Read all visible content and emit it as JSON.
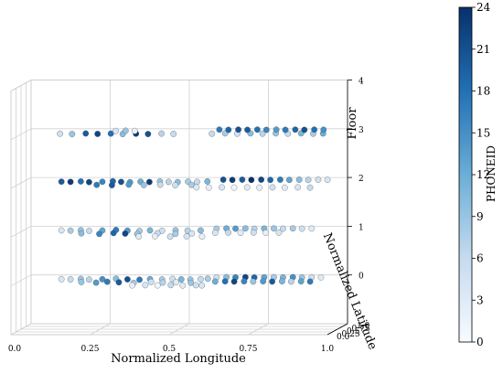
{
  "chart_data": {
    "type": "scatter",
    "projection": "3d",
    "title": "",
    "xlabel": "Normalized Longitude",
    "ylabel": "Normalized Latitude",
    "zlabel": "Floor",
    "xlim": [
      0,
      1
    ],
    "ylim": [
      0,
      1
    ],
    "zlim": [
      -1,
      4
    ],
    "x_ticks": [
      "0.0",
      "0.25",
      "0.5",
      "0.75",
      "1.0"
    ],
    "y_ticks": [
      "0.0",
      "0.25",
      "0.5",
      "0.75",
      "1.0"
    ],
    "z_ticks": [
      "0",
      "1",
      "2",
      "3",
      "4"
    ],
    "grid": true,
    "colorbar": {
      "label": "PHONEID",
      "min": 0,
      "max": 24,
      "ticks": [
        "0",
        "3",
        "6",
        "9",
        "12",
        "15",
        "18",
        "21",
        "24"
      ],
      "colormap": "Blues",
      "low_color": "#f7fbff",
      "high_color": "#08306b"
    },
    "floors": [
      {
        "floor": 0,
        "points": [
          {
            "x": 0.12,
            "y": 0.62,
            "c": 4
          },
          {
            "x": 0.15,
            "y": 0.6,
            "c": 6
          },
          {
            "x": 0.18,
            "y": 0.64,
            "c": 9
          },
          {
            "x": 0.21,
            "y": 0.58,
            "c": 7
          },
          {
            "x": 0.25,
            "y": 0.61,
            "c": 15
          },
          {
            "x": 0.29,
            "y": 0.66,
            "c": 10
          },
          {
            "x": 0.33,
            "y": 0.6,
            "c": 21
          },
          {
            "x": 0.37,
            "y": 0.57,
            "c": 17
          },
          {
            "x": 0.4,
            "y": 0.62,
            "c": 12
          },
          {
            "x": 0.44,
            "y": 0.59,
            "c": 8
          },
          {
            "x": 0.47,
            "y": 0.64,
            "c": 5
          },
          {
            "x": 0.5,
            "y": 0.6,
            "c": 11
          },
          {
            "x": 0.53,
            "y": 0.58,
            "c": 9
          },
          {
            "x": 0.56,
            "y": 0.62,
            "c": 6
          },
          {
            "x": 0.58,
            "y": 0.66,
            "c": 8
          },
          {
            "x": 0.2,
            "y": 0.35,
            "c": 9
          },
          {
            "x": 0.25,
            "y": 0.3,
            "c": 14
          },
          {
            "x": 0.28,
            "y": 0.38,
            "c": 17
          },
          {
            "x": 0.32,
            "y": 0.33,
            "c": 20
          },
          {
            "x": 0.37,
            "y": 0.28,
            "c": 8
          },
          {
            "x": 0.42,
            "y": 0.36,
            "c": 5
          },
          {
            "x": 0.46,
            "y": 0.31,
            "c": 7
          },
          {
            "x": 0.5,
            "y": 0.34,
            "c": 3
          },
          {
            "x": 0.55,
            "y": 0.29,
            "c": 9
          },
          {
            "x": 0.38,
            "y": 0.05,
            "c": 2
          },
          {
            "x": 0.42,
            "y": 0.07,
            "c": 4
          },
          {
            "x": 0.46,
            "y": 0.05,
            "c": 1
          },
          {
            "x": 0.5,
            "y": 0.08,
            "c": 6
          },
          {
            "x": 0.54,
            "y": 0.04,
            "c": 3
          },
          {
            "x": 0.58,
            "y": 0.07,
            "c": 5
          },
          {
            "x": 0.6,
            "y": 0.05,
            "c": 4
          },
          {
            "x": 0.6,
            "y": 0.78,
            "c": 5
          },
          {
            "x": 0.63,
            "y": 0.8,
            "c": 10
          },
          {
            "x": 0.66,
            "y": 0.78,
            "c": 16
          },
          {
            "x": 0.69,
            "y": 0.8,
            "c": 22
          },
          {
            "x": 0.72,
            "y": 0.77,
            "c": 19
          },
          {
            "x": 0.75,
            "y": 0.79,
            "c": 13
          },
          {
            "x": 0.78,
            "y": 0.8,
            "c": 8
          },
          {
            "x": 0.81,
            "y": 0.78,
            "c": 11
          },
          {
            "x": 0.84,
            "y": 0.8,
            "c": 15
          },
          {
            "x": 0.87,
            "y": 0.78,
            "c": 9
          },
          {
            "x": 0.9,
            "y": 0.79,
            "c": 5
          },
          {
            "x": 0.93,
            "y": 0.78,
            "c": 3
          },
          {
            "x": 0.62,
            "y": 0.4,
            "c": 12
          },
          {
            "x": 0.65,
            "y": 0.42,
            "c": 18
          },
          {
            "x": 0.68,
            "y": 0.4,
            "c": 22
          },
          {
            "x": 0.71,
            "y": 0.42,
            "c": 16
          },
          {
            "x": 0.74,
            "y": 0.4,
            "c": 9
          },
          {
            "x": 0.77,
            "y": 0.42,
            "c": 14
          },
          {
            "x": 0.8,
            "y": 0.4,
            "c": 20
          },
          {
            "x": 0.83,
            "y": 0.42,
            "c": 11
          },
          {
            "x": 0.86,
            "y": 0.4,
            "c": 7
          },
          {
            "x": 0.89,
            "y": 0.42,
            "c": 13
          },
          {
            "x": 0.92,
            "y": 0.4,
            "c": 17
          }
        ]
      },
      {
        "floor": 1,
        "points": [
          {
            "x": 0.12,
            "y": 0.62,
            "c": 4
          },
          {
            "x": 0.15,
            "y": 0.6,
            "c": 8
          },
          {
            "x": 0.18,
            "y": 0.64,
            "c": 9
          },
          {
            "x": 0.21,
            "y": 0.58,
            "c": 6
          },
          {
            "x": 0.25,
            "y": 0.61,
            "c": 13
          },
          {
            "x": 0.29,
            "y": 0.66,
            "c": 17
          },
          {
            "x": 0.33,
            "y": 0.6,
            "c": 14
          },
          {
            "x": 0.37,
            "y": 0.57,
            "c": 8
          },
          {
            "x": 0.4,
            "y": 0.62,
            "c": 11
          },
          {
            "x": 0.44,
            "y": 0.59,
            "c": 5
          },
          {
            "x": 0.48,
            "y": 0.63,
            "c": 9
          },
          {
            "x": 0.52,
            "y": 0.6,
            "c": 7
          },
          {
            "x": 0.56,
            "y": 0.62,
            "c": 10
          },
          {
            "x": 0.2,
            "y": 0.35,
            "c": 10
          },
          {
            "x": 0.26,
            "y": 0.3,
            "c": 16
          },
          {
            "x": 0.3,
            "y": 0.38,
            "c": 19
          },
          {
            "x": 0.34,
            "y": 0.33,
            "c": 22
          },
          {
            "x": 0.38,
            "y": 0.3,
            "c": 9
          },
          {
            "x": 0.44,
            "y": 0.36,
            "c": 6
          },
          {
            "x": 0.5,
            "y": 0.31,
            "c": 8
          },
          {
            "x": 0.55,
            "y": 0.34,
            "c": 4
          },
          {
            "x": 0.4,
            "y": 0.06,
            "c": 3
          },
          {
            "x": 0.45,
            "y": 0.08,
            "c": 2
          },
          {
            "x": 0.5,
            "y": 0.05,
            "c": 5
          },
          {
            "x": 0.55,
            "y": 0.08,
            "c": 4
          },
          {
            "x": 0.6,
            "y": 0.06,
            "c": 2
          },
          {
            "x": 0.6,
            "y": 0.78,
            "c": 8
          },
          {
            "x": 0.63,
            "y": 0.8,
            "c": 12
          },
          {
            "x": 0.66,
            "y": 0.78,
            "c": 14
          },
          {
            "x": 0.69,
            "y": 0.8,
            "c": 10
          },
          {
            "x": 0.72,
            "y": 0.77,
            "c": 7
          },
          {
            "x": 0.75,
            "y": 0.79,
            "c": 11
          },
          {
            "x": 0.78,
            "y": 0.8,
            "c": 9
          },
          {
            "x": 0.81,
            "y": 0.78,
            "c": 6
          },
          {
            "x": 0.84,
            "y": 0.8,
            "c": 8
          },
          {
            "x": 0.87,
            "y": 0.78,
            "c": 5
          },
          {
            "x": 0.9,
            "y": 0.79,
            "c": 3
          },
          {
            "x": 0.62,
            "y": 0.4,
            "c": 4
          },
          {
            "x": 0.66,
            "y": 0.42,
            "c": 6
          },
          {
            "x": 0.7,
            "y": 0.4,
            "c": 3
          },
          {
            "x": 0.74,
            "y": 0.42,
            "c": 5
          },
          {
            "x": 0.78,
            "y": 0.4,
            "c": 2
          },
          {
            "x": 0.82,
            "y": 0.42,
            "c": 4
          }
        ]
      },
      {
        "floor": 2,
        "points": [
          {
            "x": 0.12,
            "y": 0.62,
            "c": 20
          },
          {
            "x": 0.15,
            "y": 0.6,
            "c": 23
          },
          {
            "x": 0.18,
            "y": 0.64,
            "c": 18
          },
          {
            "x": 0.21,
            "y": 0.58,
            "c": 22
          },
          {
            "x": 0.25,
            "y": 0.61,
            "c": 16
          },
          {
            "x": 0.28,
            "y": 0.66,
            "c": 19
          },
          {
            "x": 0.31,
            "y": 0.6,
            "c": 21
          },
          {
            "x": 0.34,
            "y": 0.57,
            "c": 14
          },
          {
            "x": 0.37,
            "y": 0.62,
            "c": 12
          },
          {
            "x": 0.4,
            "y": 0.59,
            "c": 23
          },
          {
            "x": 0.43,
            "y": 0.64,
            "c": 9
          },
          {
            "x": 0.46,
            "y": 0.6,
            "c": 7
          },
          {
            "x": 0.49,
            "y": 0.58,
            "c": 10
          },
          {
            "x": 0.52,
            "y": 0.62,
            "c": 8
          },
          {
            "x": 0.55,
            "y": 0.6,
            "c": 6
          },
          {
            "x": 0.58,
            "y": 0.64,
            "c": 11
          },
          {
            "x": 0.25,
            "y": 0.33,
            "c": 17
          },
          {
            "x": 0.3,
            "y": 0.3,
            "c": 20
          },
          {
            "x": 0.35,
            "y": 0.35,
            "c": 14
          },
          {
            "x": 0.4,
            "y": 0.31,
            "c": 9
          },
          {
            "x": 0.45,
            "y": 0.34,
            "c": 6
          },
          {
            "x": 0.5,
            "y": 0.3,
            "c": 5
          },
          {
            "x": 0.55,
            "y": 0.33,
            "c": 8
          },
          {
            "x": 0.58,
            "y": 0.1,
            "c": 3
          },
          {
            "x": 0.62,
            "y": 0.08,
            "c": 2
          },
          {
            "x": 0.66,
            "y": 0.1,
            "c": 4
          },
          {
            "x": 0.7,
            "y": 0.08,
            "c": 1
          },
          {
            "x": 0.74,
            "y": 0.1,
            "c": 3
          },
          {
            "x": 0.78,
            "y": 0.08,
            "c": 2
          },
          {
            "x": 0.82,
            "y": 0.1,
            "c": 5
          },
          {
            "x": 0.86,
            "y": 0.08,
            "c": 3
          },
          {
            "x": 0.9,
            "y": 0.1,
            "c": 4
          },
          {
            "x": 0.94,
            "y": 0.08,
            "c": 6
          },
          {
            "x": 0.62,
            "y": 0.8,
            "c": 21
          },
          {
            "x": 0.65,
            "y": 0.78,
            "c": 23
          },
          {
            "x": 0.68,
            "y": 0.8,
            "c": 20
          },
          {
            "x": 0.71,
            "y": 0.78,
            "c": 24
          },
          {
            "x": 0.74,
            "y": 0.8,
            "c": 22
          },
          {
            "x": 0.77,
            "y": 0.78,
            "c": 19
          },
          {
            "x": 0.8,
            "y": 0.8,
            "c": 17
          },
          {
            "x": 0.83,
            "y": 0.78,
            "c": 13
          },
          {
            "x": 0.86,
            "y": 0.8,
            "c": 10
          },
          {
            "x": 0.89,
            "y": 0.78,
            "c": 7
          },
          {
            "x": 0.92,
            "y": 0.8,
            "c": 5
          },
          {
            "x": 0.95,
            "y": 0.79,
            "c": 4
          }
        ]
      },
      {
        "floor": 3,
        "points": [
          {
            "x": 0.12,
            "y": 0.55,
            "c": 5
          },
          {
            "x": 0.16,
            "y": 0.52,
            "c": 9
          },
          {
            "x": 0.2,
            "y": 0.57,
            "c": 20
          },
          {
            "x": 0.24,
            "y": 0.53,
            "c": 22
          },
          {
            "x": 0.28,
            "y": 0.56,
            "c": 18
          },
          {
            "x": 0.32,
            "y": 0.52,
            "c": 10
          },
          {
            "x": 0.36,
            "y": 0.55,
            "c": 23
          },
          {
            "x": 0.4,
            "y": 0.52,
            "c": 21
          },
          {
            "x": 0.44,
            "y": 0.56,
            "c": 7
          },
          {
            "x": 0.48,
            "y": 0.53,
            "c": 6
          },
          {
            "x": 0.28,
            "y": 0.8,
            "c": 4
          },
          {
            "x": 0.31,
            "y": 0.82,
            "c": 9
          },
          {
            "x": 0.34,
            "y": 0.8,
            "c": 2
          },
          {
            "x": 0.6,
            "y": 0.55,
            "c": 6
          },
          {
            "x": 0.64,
            "y": 0.58,
            "c": 8
          },
          {
            "x": 0.68,
            "y": 0.55,
            "c": 5
          },
          {
            "x": 0.72,
            "y": 0.58,
            "c": 10
          },
          {
            "x": 0.76,
            "y": 0.55,
            "c": 7
          },
          {
            "x": 0.8,
            "y": 0.58,
            "c": 9
          },
          {
            "x": 0.84,
            "y": 0.55,
            "c": 6
          },
          {
            "x": 0.88,
            "y": 0.58,
            "c": 11
          },
          {
            "x": 0.92,
            "y": 0.55,
            "c": 8
          },
          {
            "x": 0.95,
            "y": 0.57,
            "c": 12
          },
          {
            "x": 0.6,
            "y": 0.92,
            "c": 17
          },
          {
            "x": 0.63,
            "y": 0.9,
            "c": 19
          },
          {
            "x": 0.66,
            "y": 0.92,
            "c": 21
          },
          {
            "x": 0.69,
            "y": 0.9,
            "c": 20
          },
          {
            "x": 0.72,
            "y": 0.92,
            "c": 18
          },
          {
            "x": 0.75,
            "y": 0.9,
            "c": 16
          },
          {
            "x": 0.78,
            "y": 0.92,
            "c": 14
          },
          {
            "x": 0.81,
            "y": 0.9,
            "c": 17
          },
          {
            "x": 0.84,
            "y": 0.92,
            "c": 19
          },
          {
            "x": 0.87,
            "y": 0.9,
            "c": 21
          },
          {
            "x": 0.9,
            "y": 0.92,
            "c": 18
          },
          {
            "x": 0.93,
            "y": 0.91,
            "c": 15
          }
        ]
      }
    ]
  }
}
